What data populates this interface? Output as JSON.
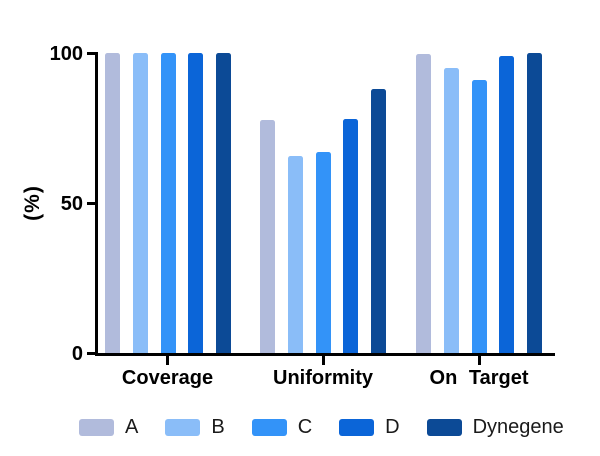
{
  "chart_data": {
    "type": "bar",
    "title": "",
    "xlabel": "",
    "ylabel": "(%)",
    "ylim": [
      0,
      100
    ],
    "yticks": [
      "0",
      "50",
      "100"
    ],
    "grid": false,
    "legend_position": "bottom",
    "categories": [
      "Coverage",
      "Uniformity",
      "On Target"
    ],
    "series": [
      {
        "name": "A",
        "color": "#b1bbdc",
        "values": [
          100,
          77.5,
          99.5
        ]
      },
      {
        "name": "B",
        "color": "#8abdf8",
        "values": [
          100,
          65.5,
          95
        ]
      },
      {
        "name": "C",
        "color": "#3393f8",
        "values": [
          100,
          67,
          91
        ]
      },
      {
        "name": "D",
        "color": "#0b65d8",
        "values": [
          100,
          78,
          99
        ]
      },
      {
        "name": "Dynegene",
        "color": "#0c4a96",
        "values": [
          100,
          88,
          100
        ]
      }
    ],
    "axis_color": "#000000"
  }
}
